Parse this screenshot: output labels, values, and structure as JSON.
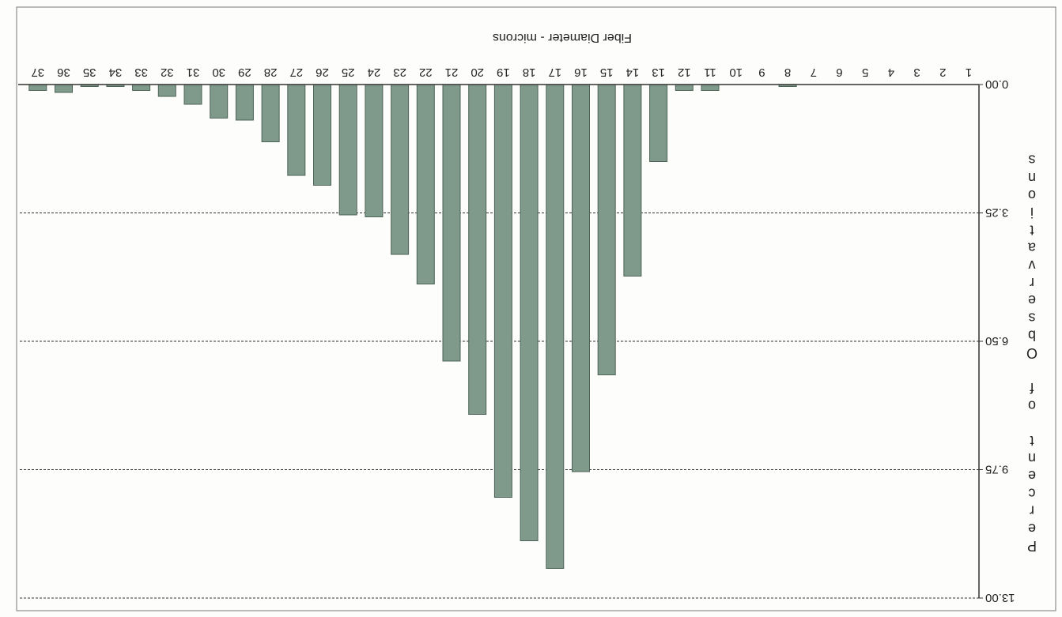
{
  "chart_data": {
    "type": "bar",
    "title": "",
    "xlabel": "Fiber Diameter - microns",
    "ylabel": "Percent of Observations",
    "categories": [
      "1",
      "2",
      "3",
      "4",
      "5",
      "6",
      "7",
      "8",
      "9",
      "10",
      "11",
      "12",
      "13",
      "14",
      "15",
      "16",
      "17",
      "18",
      "19",
      "20",
      "21",
      "22",
      "23",
      "24",
      "25",
      "26",
      "27",
      "28",
      "29",
      "30",
      "31",
      "32",
      "33",
      "34",
      "35",
      "36",
      "37"
    ],
    "values": [
      0,
      0,
      0,
      0,
      0,
      0,
      0,
      0.05,
      0,
      0,
      0.15,
      0.15,
      1.95,
      4.85,
      7.35,
      9.8,
      12.25,
      11.55,
      10.45,
      8.35,
      7.0,
      5.05,
      4.3,
      3.35,
      3.3,
      2.55,
      2.3,
      1.45,
      0.9,
      0.85,
      0.5,
      0.3,
      0.15,
      0.05,
      0.05,
      0.2,
      0.15
    ],
    "ylim": [
      0,
      13
    ],
    "yticks": [
      "0.00",
      "3.25",
      "6.50",
      "9.75",
      "13.00"
    ],
    "ytick_values": [
      0,
      3.25,
      6.5,
      9.75,
      13
    ],
    "grid": "horizontal dashed",
    "legend": "none",
    "orientation": "rotated 180 degrees",
    "bar_color": "#7f9a8b",
    "bar_stroke": "#4d6357"
  }
}
